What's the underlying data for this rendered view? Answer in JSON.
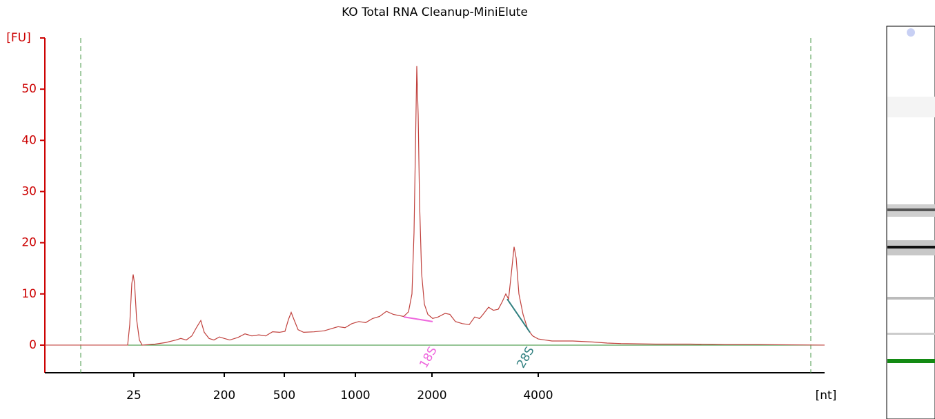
{
  "chart_data": {
    "type": "line",
    "title": "KO Total RNA Cleanup-MiniElute",
    "y_label": "[FU]",
    "x_label": "[nt]",
    "xlim": [
      19,
      75.5
    ],
    "ylim": [
      -5.4,
      60
    ],
    "yticks": [
      0,
      10,
      20,
      30,
      40,
      50
    ],
    "xticks": [
      {
        "value": 25.45,
        "label": "25"
      },
      {
        "value": 32,
        "label": "200"
      },
      {
        "value": 36.35,
        "label": "500"
      },
      {
        "value": 41.5,
        "label": "1000"
      },
      {
        "value": 47.05,
        "label": "2000"
      },
      {
        "value": 54.75,
        "label": "4000"
      }
    ],
    "marker_lines": [
      21.6,
      74.5
    ],
    "series": [
      {
        "color": "#c0403c",
        "x": [
          19,
          25,
          25.15,
          25.3,
          25.4,
          25.5,
          25.65,
          25.85,
          26.05,
          27,
          27.75,
          28.5,
          28.85,
          29.25,
          29.65,
          30,
          30.3,
          30.55,
          30.9,
          31.25,
          31.65,
          32,
          32.4,
          33,
          33.5,
          34,
          34.5,
          35,
          35.5,
          36,
          36.4,
          36.65,
          36.85,
          37.05,
          37.35,
          37.75,
          38.5,
          39.25,
          39.75,
          40.25,
          40.75,
          41.25,
          41.75,
          42.25,
          42.75,
          43.25,
          43.75,
          44.25,
          45,
          45.35,
          45.6,
          45.75,
          45.85,
          45.95,
          46.05,
          46.15,
          46.3,
          46.5,
          46.75,
          47.1,
          47.5,
          48,
          48.35,
          48.75,
          49.25,
          49.75,
          50.15,
          50.5,
          50.75,
          51.15,
          51.5,
          51.85,
          52.15,
          52.4,
          52.6,
          52.8,
          53,
          53.15,
          53.35,
          53.65,
          54,
          54.35,
          54.75,
          55.25,
          55.75,
          57.25,
          58.75,
          59.75,
          60.75,
          63.25,
          65.75,
          68.25,
          70.75,
          75.5
        ],
        "values": [
          0,
          0,
          4,
          12,
          13.8,
          12,
          5,
          1,
          0,
          0.2,
          0.5,
          1.0,
          1.3,
          1.0,
          1.8,
          3.5,
          4.8,
          2.5,
          1.3,
          1.0,
          1.6,
          1.3,
          1.0,
          1.5,
          2.2,
          1.8,
          2.0,
          1.8,
          2.6,
          2.5,
          2.7,
          5.0,
          6.4,
          5.0,
          3.0,
          2.5,
          2.6,
          2.8,
          3.2,
          3.6,
          3.4,
          4.2,
          4.6,
          4.4,
          5.2,
          5.6,
          6.6,
          6.0,
          5.6,
          6.5,
          10,
          22,
          38,
          54.5,
          45,
          28,
          14,
          8,
          6,
          5.2,
          5.5,
          6.2,
          6.0,
          4.6,
          4.2,
          4.0,
          5.5,
          5.2,
          6.0,
          7.4,
          6.8,
          7.0,
          8.5,
          10,
          9.0,
          14,
          19.2,
          17,
          10,
          6,
          3,
          1.8,
          1.2,
          1.0,
          0.8,
          0.8,
          0.6,
          0.4,
          0.3,
          0.2,
          0.2,
          0.1,
          0.1,
          0
        ]
      }
    ],
    "annotations": [
      {
        "text": "18S",
        "color": "#ee66dd",
        "x": [
          45,
          47.1
        ],
        "y": [
          5.5,
          4.6
        ]
      },
      {
        "text": "28S",
        "color": "#2f7f7f",
        "x": [
          52.5,
          54.15
        ],
        "y": [
          9,
          2.5
        ]
      }
    ]
  }
}
